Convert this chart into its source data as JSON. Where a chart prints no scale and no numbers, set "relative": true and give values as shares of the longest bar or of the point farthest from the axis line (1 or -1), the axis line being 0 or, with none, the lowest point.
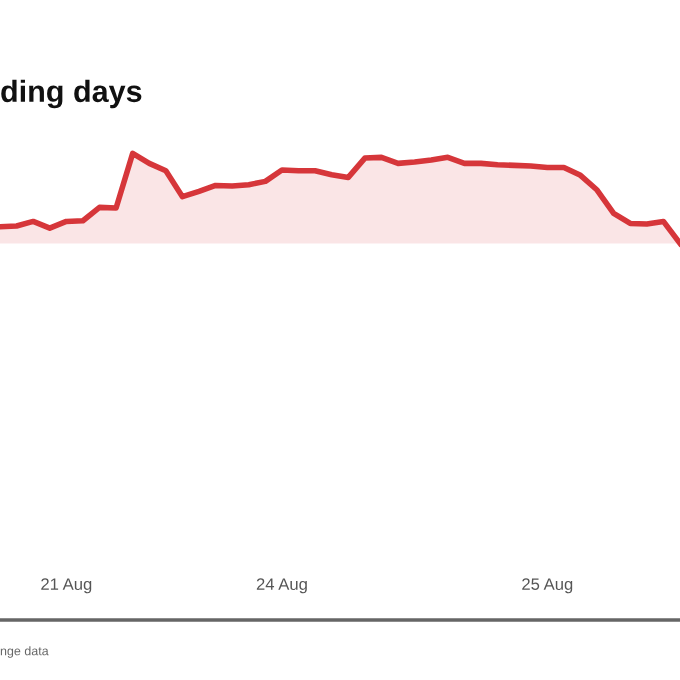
{
  "chart_data": {
    "type": "area",
    "title": "ding days",
    "annotations": [
      "nge data"
    ],
    "relative": true,
    "legend": false,
    "categories": [
      null,
      null,
      null,
      null,
      "21 Aug",
      null,
      null,
      null,
      null,
      null,
      null,
      null,
      null,
      null,
      null,
      null,
      null,
      "24 Aug",
      null,
      null,
      null,
      null,
      null,
      null,
      null,
      null,
      null,
      null,
      null,
      null,
      null,
      null,
      null,
      "25 Aug",
      null,
      null,
      null,
      null,
      null,
      null,
      null,
      null
    ],
    "series": [
      {
        "color": "#d6363a",
        "values": [
          0.185,
          0.193,
          0.244,
          0.17,
          0.244,
          0.252,
          0.4,
          0.393,
          1,
          0.889,
          0.807,
          0.519,
          0.578,
          0.644,
          0.637,
          0.652,
          0.689,
          0.815,
          0.807,
          0.807,
          0.763,
          0.733,
          0.948,
          0.956,
          0.889,
          0.904,
          0.926,
          0.956,
          0.889,
          0.889,
          0.874,
          0.867,
          0.859,
          0.844,
          0.844,
          0.756,
          0.593,
          0.333,
          0.222,
          0.215,
          0.244,
          0
        ]
      }
    ]
  }
}
